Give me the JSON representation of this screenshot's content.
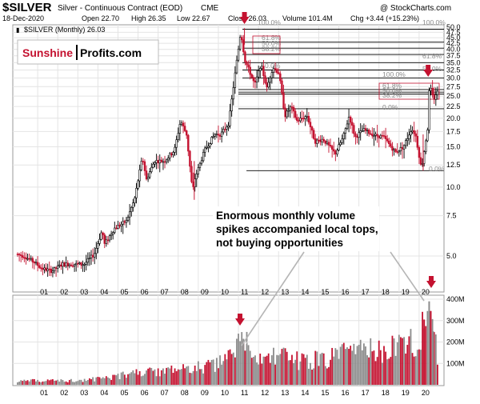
{
  "header": {
    "symbol": "$SILVER",
    "description": "Silver - Continuous Contract (EOD)",
    "exchange": "CME",
    "watermark": "@ StockCharts.com",
    "date": "18-Dec-2020",
    "open": "Open 22.70",
    "high": "High 26.35",
    "low": "Low 22.67",
    "close": "Close 26.03",
    "volume": "Volume 101.4M",
    "change": "Chg +3.44 (+15.23%)",
    "legend_text": "$SILVER (Monthly) 26.03"
  },
  "logo": {
    "part1": "Sunshine",
    "part2": "Profits.com"
  },
  "annotation": {
    "lines": [
      "Enormous monthly volume",
      "spikes accompanied local tops,",
      "not buying opportunities"
    ]
  },
  "fib_labels": {
    "set1": [
      "100.0%",
      "61.8%",
      "50.0%",
      "38.2%",
      "0.0%",
      "0.0%"
    ],
    "set2": [
      "100.0%",
      "61.8%",
      "50.0%",
      "38.2%",
      "0.0%"
    ],
    "set3": [
      "100.0%",
      "61.8%",
      "50.0%"
    ]
  },
  "colors": {
    "up": "#000000",
    "down": "#c41230",
    "arrow": "#c41230",
    "volume_up": "#8c8c8c",
    "volume_down": "#c41230",
    "grid": "#e4e4e4",
    "logo_sunshine": "#c41230"
  },
  "chart_data": {
    "type": "candlestick",
    "scale": "log",
    "price_axis_ticks": [
      "50.0",
      "47.5",
      "45.0",
      "42.5",
      "40.0",
      "37.5",
      "35.0",
      "32.5",
      "30.0",
      "27.5",
      "25.0",
      "22.5",
      "20.0",
      "17.5",
      "15.0",
      "12.5",
      "10.0",
      "7.5",
      "5.0"
    ],
    "volume_axis_ticks": [
      "400M",
      "300M",
      "200M",
      "100M"
    ],
    "x_ticks": [
      "01",
      "02",
      "03",
      "04",
      "05",
      "06",
      "07",
      "08",
      "09",
      "10",
      "11",
      "12",
      "13",
      "14",
      "15",
      "16",
      "17",
      "18",
      "19",
      "20"
    ],
    "price_path": [
      [
        2000.0,
        5.1
      ],
      [
        2000.4,
        5.0
      ],
      [
        2000.9,
        4.7
      ],
      [
        2001.3,
        4.4
      ],
      [
        2001.8,
        4.3
      ],
      [
        2002.3,
        4.6
      ],
      [
        2002.9,
        4.6
      ],
      [
        2003.4,
        4.6
      ],
      [
        2003.9,
        5.1
      ],
      [
        2004.3,
        6.5
      ],
      [
        2004.4,
        5.6
      ],
      [
        2004.9,
        6.6
      ],
      [
        2005.5,
        7.1
      ],
      [
        2005.9,
        8.8
      ],
      [
        2006.3,
        13.5
      ],
      [
        2006.5,
        10.8
      ],
      [
        2006.9,
        13.0
      ],
      [
        2007.4,
        13.0
      ],
      [
        2007.9,
        14.5
      ],
      [
        2008.2,
        19.5
      ],
      [
        2008.5,
        17.0
      ],
      [
        2008.8,
        9.5
      ],
      [
        2008.9,
        10.8
      ],
      [
        2009.4,
        14.5
      ],
      [
        2009.9,
        17.0
      ],
      [
        2010.2,
        17.0
      ],
      [
        2010.6,
        19.0
      ],
      [
        2010.9,
        30.5
      ],
      [
        2011.2,
        48.0
      ],
      [
        2011.4,
        36.0
      ],
      [
        2011.7,
        31.0
      ],
      [
        2011.9,
        28.0
      ],
      [
        2012.2,
        34.5
      ],
      [
        2012.5,
        27.0
      ],
      [
        2012.8,
        33.5
      ],
      [
        2013.1,
        31.5
      ],
      [
        2013.4,
        20.5
      ],
      [
        2013.7,
        22.5
      ],
      [
        2014.0,
        19.5
      ],
      [
        2014.5,
        20.5
      ],
      [
        2014.9,
        15.8
      ],
      [
        2015.3,
        16.2
      ],
      [
        2015.9,
        14.0
      ],
      [
        2016.3,
        16.5
      ],
      [
        2016.6,
        20.5
      ],
      [
        2016.9,
        16.5
      ],
      [
        2017.3,
        17.8
      ],
      [
        2017.9,
        16.8
      ],
      [
        2018.3,
        16.6
      ],
      [
        2018.9,
        14.2
      ],
      [
        2019.3,
        15.0
      ],
      [
        2019.7,
        18.0
      ],
      [
        2019.9,
        17.0
      ],
      [
        2020.2,
        12.0
      ],
      [
        2020.5,
        18.0
      ],
      [
        2020.6,
        28.0
      ],
      [
        2020.8,
        24.0
      ],
      [
        2020.95,
        26.0
      ]
    ],
    "horizontal_levels": [
      49.0,
      43.0,
      40.5,
      38.0,
      35.0,
      32.5,
      30.0,
      26.7,
      26.0,
      25.5,
      22.0,
      11.8
    ],
    "volume_path": [
      [
        2000,
        20
      ],
      [
        2003,
        22
      ],
      [
        2004,
        30
      ],
      [
        2006,
        60
      ],
      [
        2008,
        75
      ],
      [
        2010,
        100
      ],
      [
        2011.3,
        215
      ],
      [
        2012,
        130
      ],
      [
        2013,
        150
      ],
      [
        2014,
        120
      ],
      [
        2015,
        125
      ],
      [
        2016,
        150
      ],
      [
        2017,
        165
      ],
      [
        2018,
        175
      ],
      [
        2019,
        195
      ],
      [
        2020,
        240
      ],
      [
        2020.25,
        300
      ],
      [
        2020.55,
        390
      ],
      [
        2020.75,
        250
      ],
      [
        2020.95,
        101
      ]
    ],
    "arrows_price": [
      2011.3,
      2020.45
    ],
    "arrows_volume": [
      2011.0,
      2020.3
    ]
  }
}
